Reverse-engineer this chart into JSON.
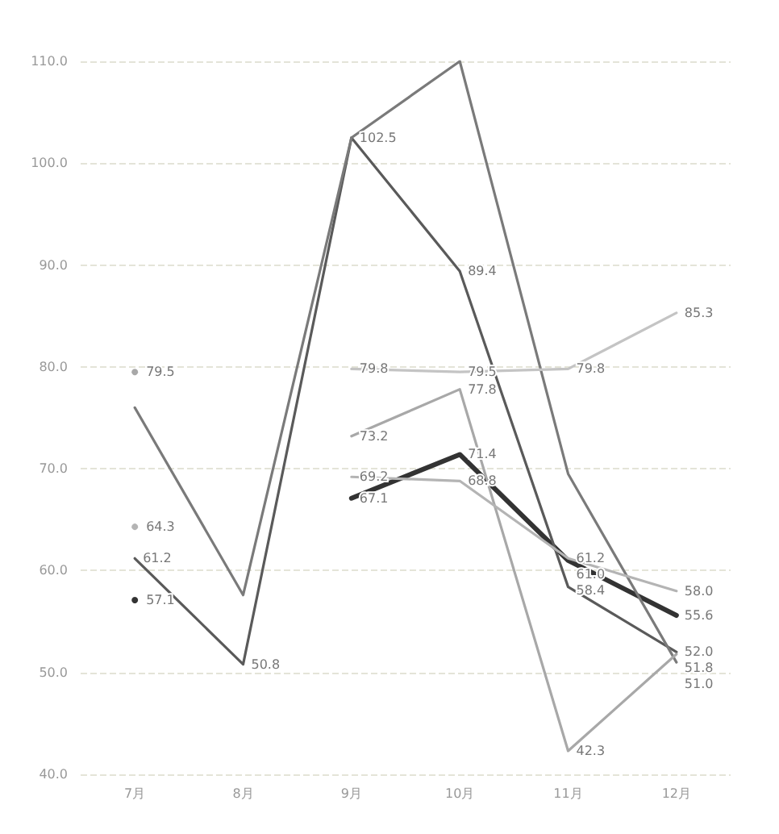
{
  "chart_data": {
    "type": "line",
    "categories": [
      "7月",
      "8月",
      "9月",
      "10月",
      "11月",
      "12月"
    ],
    "ylim": [
      40,
      110
    ],
    "yticks": [
      {
        "value": 40,
        "label": "40.0"
      },
      {
        "value": 50,
        "label": "50.0"
      },
      {
        "value": 60,
        "label": "60.0"
      },
      {
        "value": 70,
        "label": "70.0"
      },
      {
        "value": 80,
        "label": "80.0"
      },
      {
        "value": 90,
        "label": "90.0"
      },
      {
        "value": 100,
        "label": "100.0"
      },
      {
        "value": 110,
        "label": "110.0"
      }
    ],
    "grid": "y",
    "marker": "none",
    "line_style": "solid",
    "series": [
      {
        "color": "#333333",
        "values": [
          57.1,
          null,
          67.1,
          71.4,
          61.0,
          55.6
        ],
        "value_labels": [
          "57.1",
          null,
          "67.1",
          "71.4",
          "61.0",
          "55.6"
        ]
      },
      {
        "color": "#5a5a5a",
        "values": [
          61.2,
          50.8,
          102.5,
          89.4,
          58.4,
          52.0
        ],
        "value_labels": [
          "61.2",
          "50.8",
          "102.5",
          "89.4",
          "58.4",
          "52.0"
        ]
      },
      {
        "color": "#7a7a7a",
        "values": [
          76.0,
          57.6,
          102.5,
          110.0,
          69.5,
          51.0
        ],
        "value_labels": [
          null,
          null,
          null,
          null,
          null,
          "51.0"
        ]
      },
      {
        "color": "#a8a8a8",
        "values": [
          79.5,
          null,
          73.2,
          77.8,
          42.3,
          51.8
        ],
        "value_labels": [
          "79.5",
          null,
          "73.2",
          "77.8",
          "42.3",
          "51.8"
        ]
      },
      {
        "color": "#b4b4b4",
        "values": [
          64.3,
          null,
          69.2,
          68.8,
          61.2,
          58.0
        ],
        "value_labels": [
          "64.3",
          null,
          "69.2",
          "68.8",
          "61.2",
          "58.0"
        ]
      },
      {
        "color": "#c4c4c4",
        "values": [
          null,
          null,
          79.8,
          79.5,
          79.8,
          85.3
        ],
        "value_labels": [
          null,
          null,
          "79.8",
          "79.5",
          "79.8",
          "85.3"
        ]
      }
    ]
  }
}
